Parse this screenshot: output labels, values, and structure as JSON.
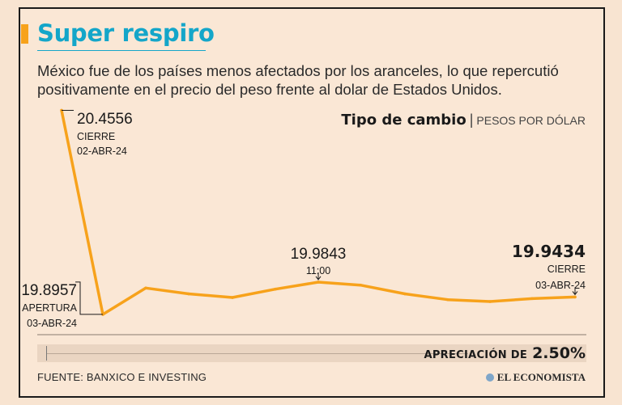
{
  "header": {
    "title": "Super respiro",
    "subtitle_line1": "México fue de los países menos afectados por los aranceles, lo que repercutió",
    "subtitle_line2": "positivamente en el precio del peso frente al dolar de Estados Unidos."
  },
  "chart_heading": {
    "title": "Tipo de cambio",
    "separator": "|",
    "unit": "PESOS POR DÓLAR"
  },
  "chart_data": {
    "type": "line",
    "title": "Tipo de cambio",
    "ylabel": "PESOS POR DÓLAR",
    "xlabel": "",
    "ylim": [
      19.86,
      20.47
    ],
    "series": [
      {
        "values": [
          20.4556,
          19.8957,
          19.968,
          19.952,
          19.942,
          19.965,
          19.9843,
          19.976,
          19.952,
          19.936,
          19.931,
          19.939,
          19.9434
        ]
      }
    ],
    "line_color": "#f7a21b",
    "grid": false,
    "legend": "none",
    "annotations": [
      {
        "value": "20.4556",
        "label1": "CIERRE",
        "label2": "02-ABR-24"
      },
      {
        "value": "19.8957",
        "label1": "APERTURA",
        "label2": "03-ABR-24"
      },
      {
        "value": "19.9843",
        "label1": "11:00",
        "label2": ""
      },
      {
        "value": "19.9434",
        "label1": "CIERRE",
        "label2": "03-ABR-24"
      }
    ]
  },
  "footer": {
    "appreciation_label": "APRECIACIÓN DE",
    "appreciation_value": "2.50%",
    "source": "FUENTE: BANXICO E INVESTING",
    "logo": "EL ECONOMISTA"
  },
  "colors": {
    "accent": "#f7a21b",
    "title": "#14a6c9",
    "background": "#fae7d5"
  }
}
